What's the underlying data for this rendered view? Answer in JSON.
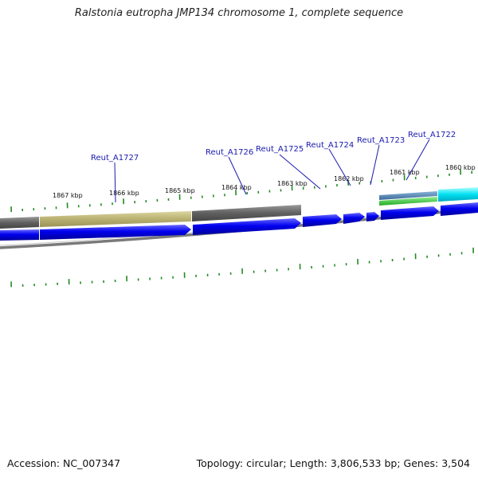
{
  "title": "Ralstonia eutropha JMP134 chromosome 1, complete sequence",
  "footer": {
    "accession": "Accession: NC_007347",
    "topology": "Topology: circular; Length: 3,806,533 bp; Genes: 3,504"
  },
  "scale_labels": [
    "1867 kbp",
    "1866 kbp",
    "1865 kbp",
    "1864 kbp",
    "1863 kbp",
    "1862 kbp",
    "1861 kbp",
    "1860 kbp"
  ],
  "gene_labels": [
    "Reut_A1727",
    "Reut_A1726",
    "Reut_A1725",
    "Reut_A1724",
    "Reut_A1723",
    "Reut_A1722"
  ],
  "colors": {
    "gene": "#0000ee",
    "feature_gray": "#606060",
    "feature_khaki": "#b8b070",
    "tick": "#228b22",
    "callout": "#1a1ab0",
    "backbone": "#808080"
  }
}
